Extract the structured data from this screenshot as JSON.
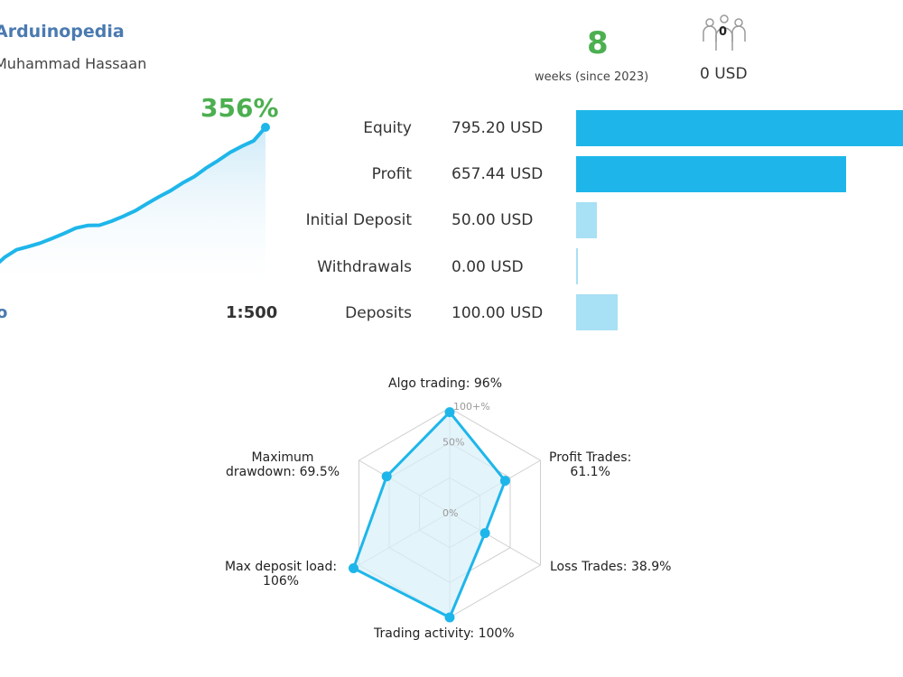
{
  "signal": {
    "name": "Arduinopedia",
    "author": "Muhammad Hassaan",
    "growth": "356%",
    "bottom_left_label": "o",
    "leverage": "1:500",
    "growth_curve": [
      0.0,
      7.5,
      12.8,
      15.0,
      17.5,
      20.8,
      24.2,
      28.0,
      29.8,
      30.0,
      32.8,
      36.2,
      40.0,
      45.0,
      49.8,
      54.2,
      59.5,
      64.0,
      70.0,
      75.2,
      80.8,
      85.2,
      89.0,
      98.5
    ]
  },
  "summary": {
    "weeks_value": "8",
    "weeks_caption": "weeks (since 2023)",
    "subscribers_count": "0",
    "subscribers_usd": "0 USD"
  },
  "stats": [
    {
      "label": "Equity",
      "value": "795.20 USD",
      "amount": 795.2,
      "color": "#1eb6ea"
    },
    {
      "label": "Profit",
      "value": "657.44 USD",
      "amount": 657.44,
      "color": "#1eb6ea"
    },
    {
      "label": "Initial Deposit",
      "value": "50.00 USD",
      "amount": 50.0,
      "color": "#a8e0f5"
    },
    {
      "label": "Withdrawals",
      "value": "0.00 USD",
      "amount": 0.0,
      "color": "#a8e0f5"
    },
    {
      "label": "Deposits",
      "value": "100.00 USD",
      "amount": 100.0,
      "color": "#a8e0f5"
    }
  ],
  "radar": {
    "ring_labels": [
      "100+%",
      "50%",
      "0%"
    ],
    "axes": [
      {
        "label_lines": [
          "Algo trading: 96%"
        ],
        "value": 96
      },
      {
        "label_lines": [
          "Profit Trades:",
          "61.1%"
        ],
        "value": 61.1
      },
      {
        "label_lines": [
          "Loss Trades: 38.9%"
        ],
        "value": 38.9
      },
      {
        "label_lines": [
          "Trading activity: 100%"
        ],
        "value": 100
      },
      {
        "label_lines": [
          "Max deposit load:",
          "106%"
        ],
        "value": 106
      },
      {
        "label_lines": [
          "Maximum",
          "drawdown: 69.5%"
        ],
        "value": 69.5
      }
    ],
    "line_color": "#1eb6ea",
    "fill_color": "#d8f0fa"
  }
}
